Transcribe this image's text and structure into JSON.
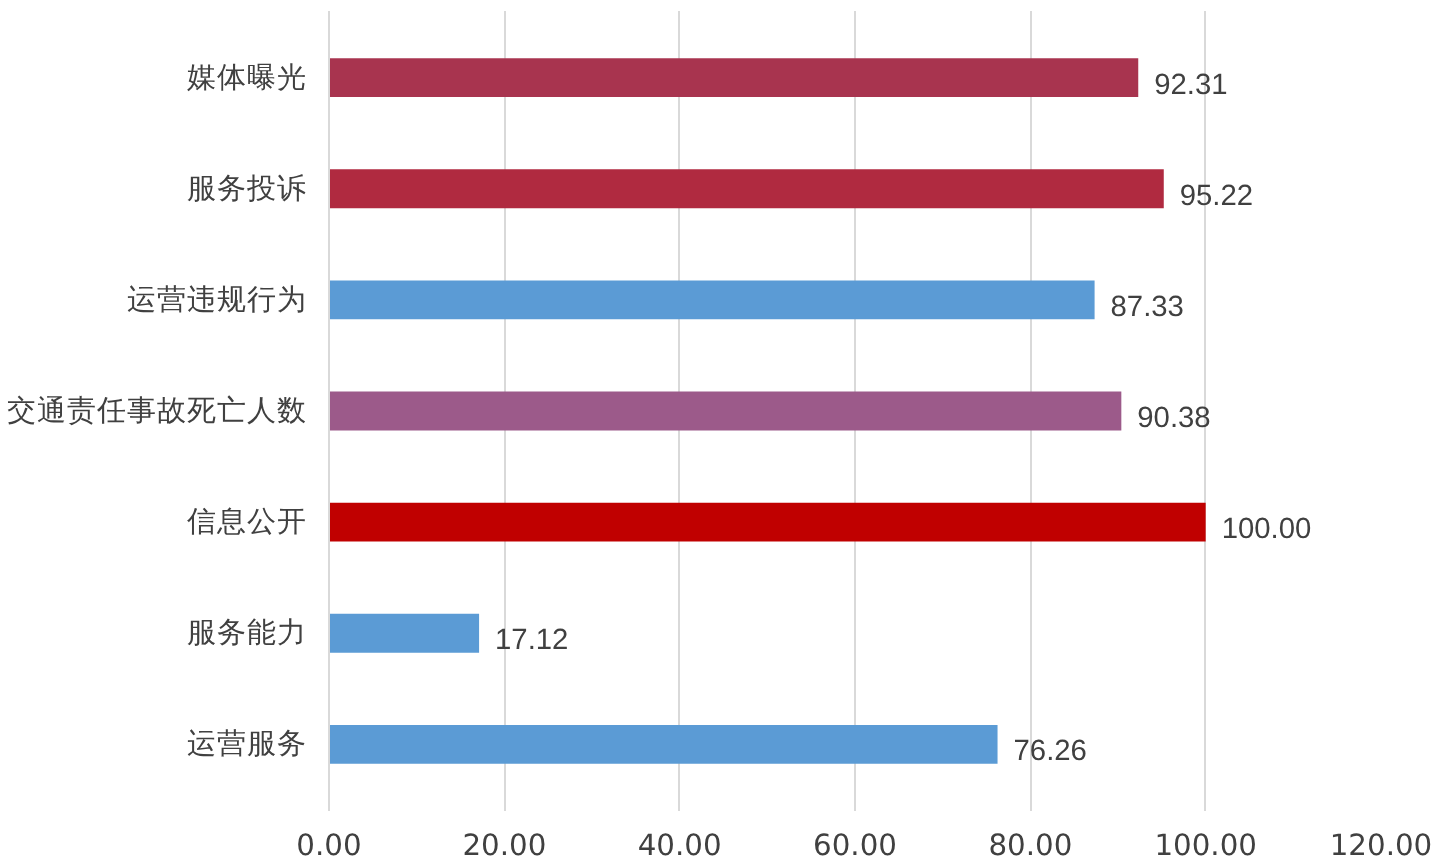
{
  "chart_data": {
    "type": "bar",
    "orientation": "horizontal",
    "categories": [
      "媒体曝光",
      "服务投诉",
      "运营违规行为",
      "交通责任事故死亡人数",
      "信息公开",
      "服务能力",
      "运营服务"
    ],
    "values": [
      92.31,
      95.22,
      87.33,
      90.38,
      100.0,
      17.12,
      76.26
    ],
    "colors": [
      "#a8344f",
      "#b02a40",
      "#5b9bd5",
      "#9c5a8a",
      "#c00000",
      "#5b9bd5",
      "#5b9bd5"
    ],
    "value_labels": [
      "92.31",
      "95.22",
      "87.33",
      "90.38",
      "100.00",
      "17.12",
      "76.26"
    ],
    "xlim": [
      0,
      120
    ],
    "xticks": [
      {
        "value": 0,
        "label": "0.00"
      },
      {
        "value": 20,
        "label": "20.00"
      },
      {
        "value": 40,
        "label": "40.00"
      },
      {
        "value": 60,
        "label": "60.00"
      },
      {
        "value": 80,
        "label": "80.00"
      },
      {
        "value": 100,
        "label": "100.00"
      },
      {
        "value": 120,
        "label": "120.00"
      }
    ],
    "grid": "x"
  }
}
